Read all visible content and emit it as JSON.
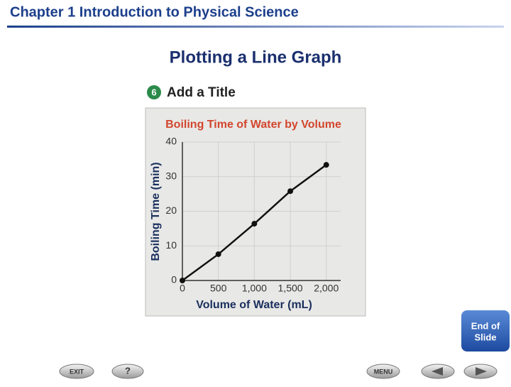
{
  "header": {
    "title": "Chapter 1  Introduction to Physical Science"
  },
  "slide": {
    "title": "Plotting a Line Graph",
    "step_number": "6",
    "step_title": "Add a Title"
  },
  "chart_data": {
    "type": "line",
    "title": "Boiling Time of Water by Volume",
    "x_label": "Volume of Water (mL)",
    "y_label": "Boiling Time (min)",
    "x": [
      0,
      500,
      1000,
      1500,
      2000
    ],
    "series": [
      {
        "color": "#111111",
        "values": [
          0,
          7.6,
          16.4,
          25.8,
          33.4
        ]
      }
    ],
    "xlim": [
      0,
      2200
    ],
    "ylim": [
      0,
      40
    ],
    "xticks": [
      0,
      500,
      {
        "value": 1000,
        "label": "1,000"
      },
      {
        "value": 1500,
        "label": "1,500"
      },
      {
        "value": 2000,
        "label": "2,000"
      }
    ],
    "yticks": [
      0,
      10,
      20,
      30,
      40
    ],
    "grid": true
  },
  "buttons": {
    "end_line1": "End of",
    "end_line2": "Slide",
    "exit": "EXIT",
    "help": "?",
    "menu": "MENU"
  }
}
